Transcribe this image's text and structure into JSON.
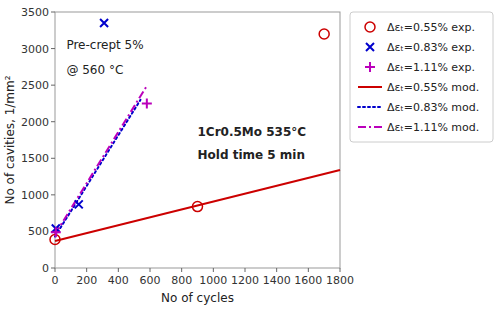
{
  "chart_data": {
    "type": "line",
    "xlabel": "No of cycles",
    "ylabel": "No of cavities, 1/mm²",
    "xlim": [
      0,
      1800
    ],
    "ylim": [
      0,
      3500
    ],
    "xticks": [
      0,
      200,
      400,
      600,
      800,
      1000,
      1200,
      1400,
      1600,
      1800
    ],
    "yticks": [
      0,
      500,
      1000,
      1500,
      2000,
      2500,
      3000,
      3500
    ],
    "grid": false,
    "legend": "right",
    "annotations": [
      "Pre-crept 5%",
      "@ 560 °C",
      "1Cr0.5Mo 535°C",
      "Hold time 5 min"
    ],
    "series": [
      {
        "name": "Δεₜ=0.55% exp.",
        "type": "scatter",
        "marker": "circle",
        "color": "#cc0000",
        "x": [
          0,
          900,
          1700
        ],
        "values": [
          390,
          840,
          3200
        ]
      },
      {
        "name": "Δεₜ=0.83% exp.",
        "type": "scatter",
        "marker": "x",
        "color": "#0000cc",
        "x": [
          5,
          150,
          310
        ],
        "values": [
          540,
          870,
          3350
        ]
      },
      {
        "name": "Δεₜ=1.11% exp.",
        "type": "scatter",
        "marker": "plus",
        "color": "#bb00bb",
        "x": [
          5,
          580
        ],
        "values": [
          490,
          2250
        ]
      },
      {
        "name": "Δεₜ=0.55% mod.",
        "type": "line",
        "line_style": "solid",
        "color": "#cc0000",
        "x": [
          0,
          1800
        ],
        "values": [
          370,
          1340
        ]
      },
      {
        "name": "Δεₜ=0.83% mod.",
        "type": "line",
        "line_style": "dotted",
        "color": "#0000cc",
        "x": [
          0,
          540
        ],
        "values": [
          430,
          2300
        ]
      },
      {
        "name": "Δεₜ=1.11% mod.",
        "type": "line",
        "line_style": "dashdot",
        "color": "#bb00bb",
        "x": [
          0,
          580
        ],
        "values": [
          460,
          2490
        ]
      }
    ]
  }
}
